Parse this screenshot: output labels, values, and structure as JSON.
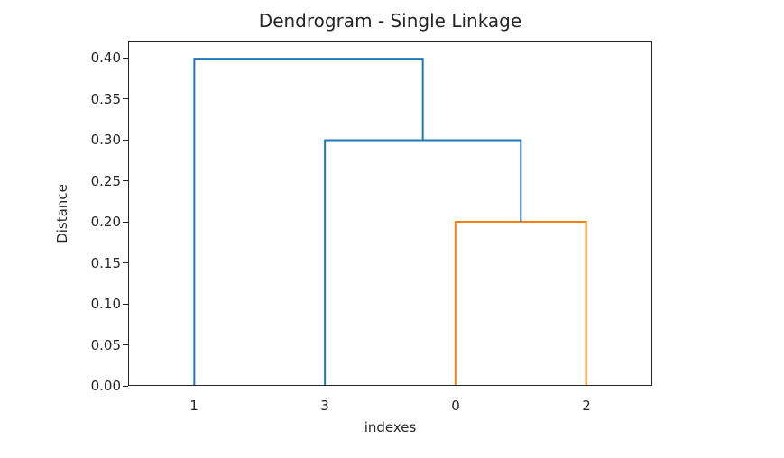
{
  "chart_data": {
    "type": "dendrogram",
    "title": "Dendrogram - Single Linkage",
    "xlabel": "indexes",
    "ylabel": "Distance",
    "xlim": [
      0,
      40
    ],
    "ylim": [
      0,
      0.42
    ],
    "grid": false,
    "line_width": 2,
    "axis_color": "#262626",
    "text_color": "#262626",
    "leaves": [
      {
        "label": "1",
        "position": 5
      },
      {
        "label": "3",
        "position": 15
      },
      {
        "label": "0",
        "position": 25
      },
      {
        "label": "2",
        "position": 35
      }
    ],
    "yticks": [
      {
        "value": 0.0,
        "label": "0.00"
      },
      {
        "value": 0.05,
        "label": "0.05"
      },
      {
        "value": 0.1,
        "label": "0.10"
      },
      {
        "value": 0.15,
        "label": "0.15"
      },
      {
        "value": 0.2,
        "label": "0.20"
      },
      {
        "value": 0.25,
        "label": "0.25"
      },
      {
        "value": 0.3,
        "label": "0.30"
      },
      {
        "value": 0.35,
        "label": "0.35"
      },
      {
        "value": 0.4,
        "label": "0.40"
      }
    ],
    "links": [
      {
        "name": "merge-leaves-0-2",
        "members": [
          "0",
          "2"
        ],
        "distance": 0.2,
        "color": "#ff7f0e",
        "x": [
          25,
          25,
          35,
          35
        ],
        "y": [
          0,
          0.2,
          0.2,
          0
        ]
      },
      {
        "name": "merge-3-with-0-2",
        "members": [
          "3",
          "(0,2)"
        ],
        "distance": 0.3,
        "color": "#1f77b4",
        "x": [
          15,
          15,
          30,
          30
        ],
        "y": [
          0,
          0.3,
          0.3,
          0.2
        ]
      },
      {
        "name": "merge-1-with-rest",
        "members": [
          "1",
          "(3,(0,2))"
        ],
        "distance": 0.4,
        "color": "#1f77b4",
        "x": [
          5,
          5,
          22.5,
          22.5
        ],
        "y": [
          0,
          0.4,
          0.4,
          0.3
        ]
      }
    ],
    "palette": {
      "above_threshold_link": "#1f77b4",
      "cluster_link": "#ff7f0e"
    }
  }
}
